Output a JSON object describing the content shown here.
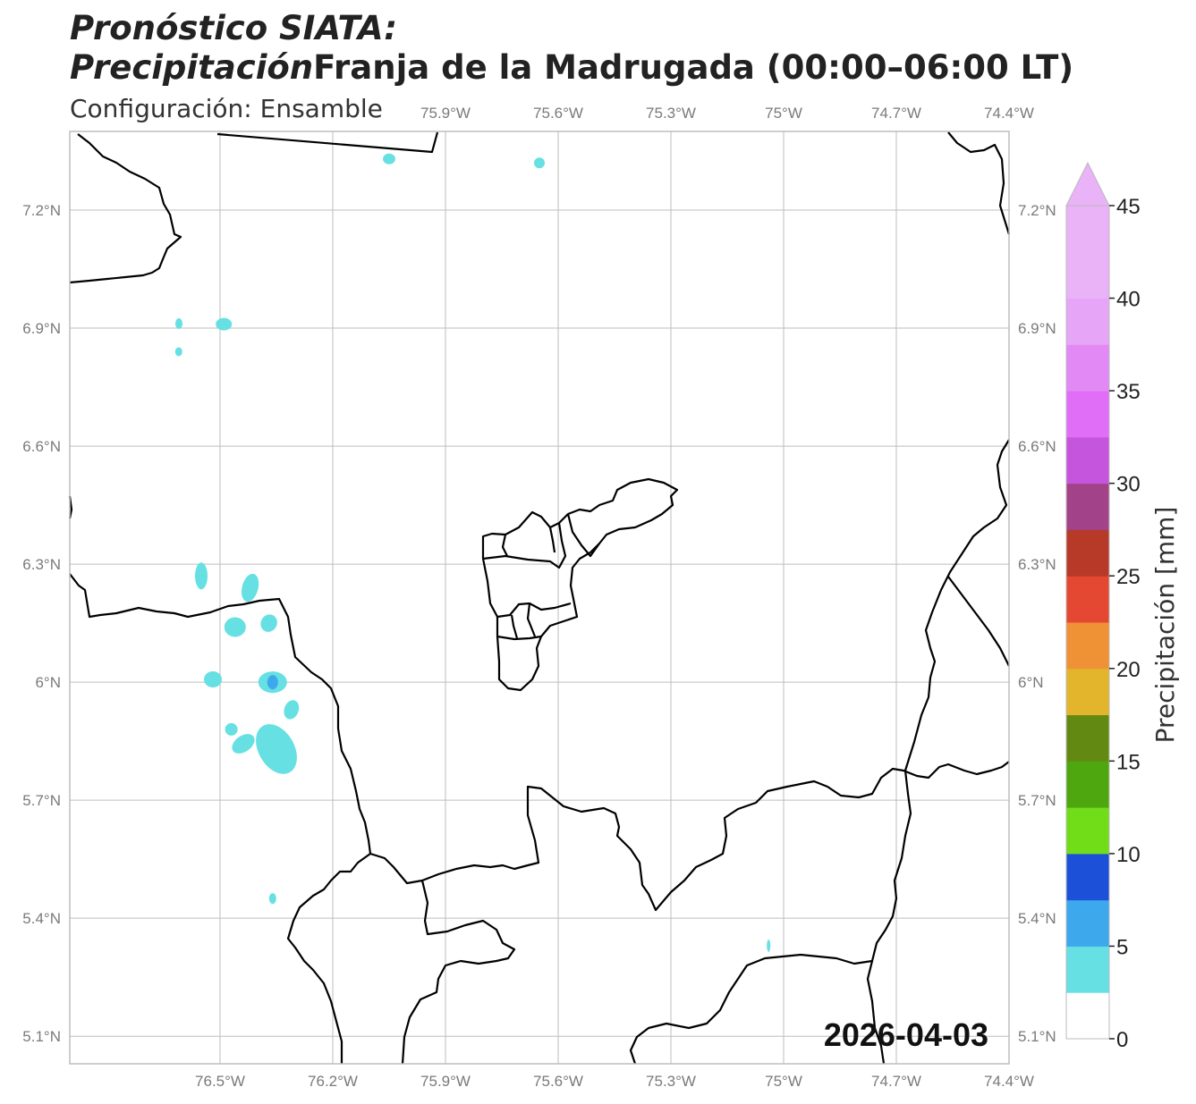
{
  "title": {
    "line1": "Pronóstico SIATA:",
    "line2_italic": "Precipitación",
    "line2_rest": "Franja de la Madrugada (00:00–06:00 LT)"
  },
  "subtitle": "Configuración: Ensamble",
  "date": "2026-04-03",
  "map": {
    "lon_range": [
      -76.9,
      -74.4
    ],
    "lat_range": [
      5.03,
      7.4
    ],
    "x_ticks": [
      {
        "value": -76.5,
        "label": "76.5°W"
      },
      {
        "value": -76.2,
        "label": "76.2°W"
      },
      {
        "value": -75.9,
        "label": "75.9°W"
      },
      {
        "value": -75.6,
        "label": "75.6°W"
      },
      {
        "value": -75.3,
        "label": "75.3°W"
      },
      {
        "value": -75.0,
        "label": "75°W"
      },
      {
        "value": -74.7,
        "label": "74.7°W"
      },
      {
        "value": -74.4,
        "label": "74.4°W"
      }
    ],
    "y_ticks": [
      {
        "value": 7.2,
        "label": "7.2°N"
      },
      {
        "value": 6.9,
        "label": "6.9°N"
      },
      {
        "value": 6.6,
        "label": "6.6°N"
      },
      {
        "value": 6.3,
        "label": "6.3°N"
      },
      {
        "value": 6.0,
        "label": "6°N"
      },
      {
        "value": 5.7,
        "label": "5.7°N"
      },
      {
        "value": 5.4,
        "label": "5.4°N"
      },
      {
        "value": 5.1,
        "label": "5.1°N"
      }
    ],
    "gridlines": true,
    "precip_cells_mm": [
      {
        "lon": -76.49,
        "lat": 6.91,
        "mm": 3
      },
      {
        "lon": -76.61,
        "lat": 6.84,
        "mm": 3
      },
      {
        "lon": -76.42,
        "lat": 6.24,
        "mm": 3
      },
      {
        "lon": -76.55,
        "lat": 6.27,
        "mm": 3
      },
      {
        "lon": -76.37,
        "lat": 6.15,
        "mm": 3
      },
      {
        "lon": -76.46,
        "lat": 6.14,
        "mm": 3
      },
      {
        "lon": -76.36,
        "lat": 6.0,
        "mm": 6
      },
      {
        "lon": -76.31,
        "lat": 5.93,
        "mm": 3
      },
      {
        "lon": -76.47,
        "lat": 5.88,
        "mm": 3
      },
      {
        "lon": -76.35,
        "lat": 5.83,
        "mm": 3
      },
      {
        "lon": -76.36,
        "lat": 5.45,
        "mm": 3
      },
      {
        "lon": -76.05,
        "lat": 7.33,
        "mm": 3
      },
      {
        "lon": -75.65,
        "lat": 7.32,
        "mm": 3
      },
      {
        "lon": -75.04,
        "lat": 5.33,
        "mm": 3
      }
    ]
  },
  "colorbar": {
    "label": "Precipitación [mm]",
    "levels": [
      0,
      2.5,
      5,
      7.5,
      10,
      12.5,
      15,
      17.5,
      20,
      22.5,
      25,
      27.5,
      30,
      32.5,
      35,
      37.5,
      40,
      45
    ],
    "colors": [
      "#ffffff",
      "#66e0e3",
      "#3ea8ec",
      "#1d50d9",
      "#71dd19",
      "#4fa710",
      "#628a12",
      "#e2b52c",
      "#ef9135",
      "#e44833",
      "#b73928",
      "#a24288",
      "#c455dc",
      "#e06ef7",
      "#e289f5",
      "#e7a5f7",
      "#eab2f7"
    ],
    "tick_labels": [
      "0",
      "5",
      "10",
      "15",
      "20",
      "25",
      "30",
      "35",
      "40",
      "45"
    ],
    "extend": "max"
  },
  "colors": {
    "boundary": "#000000",
    "grid": "#bdbdbd",
    "frame": "#bdbdbd"
  }
}
